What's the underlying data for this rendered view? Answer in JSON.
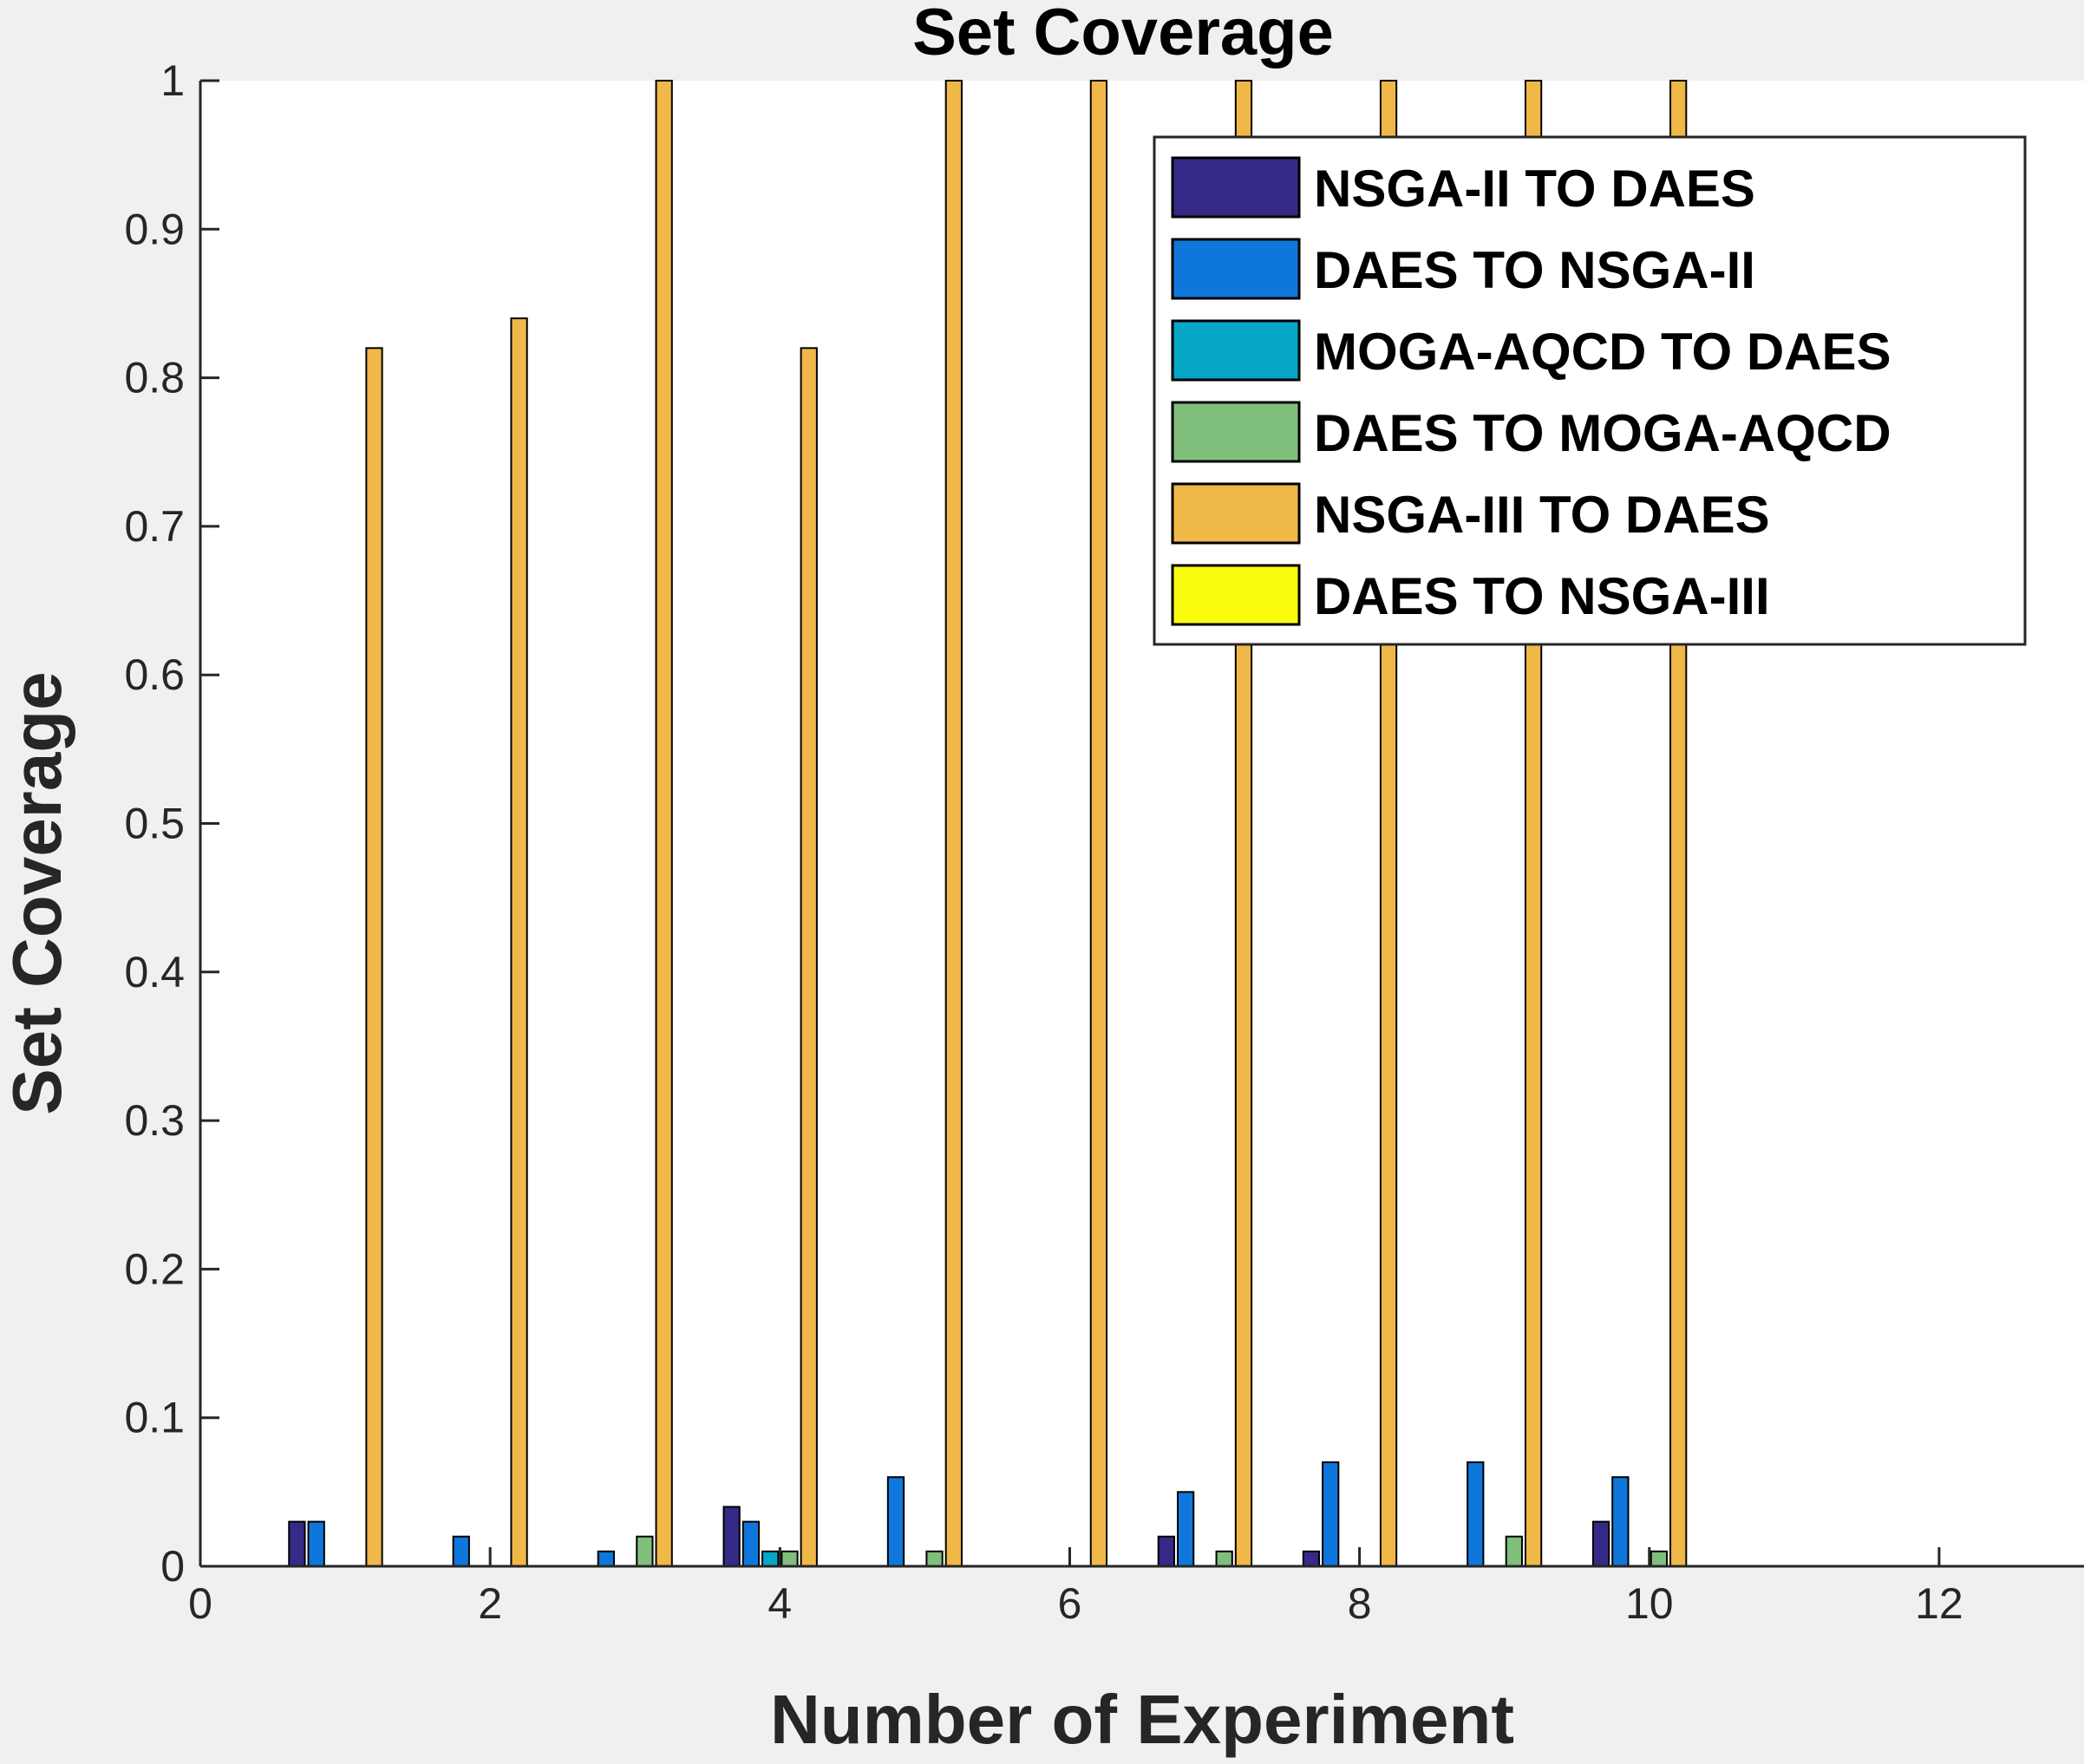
{
  "chart_data": {
    "type": "bar",
    "title": "Set Coverage",
    "xlabel": "Number of Experiment",
    "ylabel": "Set Coverage",
    "xlim": [
      0,
      13
    ],
    "ylim": [
      0,
      1
    ],
    "xticks": [
      "0",
      "2",
      "4",
      "6",
      "8",
      "10",
      "12"
    ],
    "yticks": [
      "0",
      "0.1",
      "0.2",
      "0.3",
      "0.4",
      "0.5",
      "0.6",
      "0.7",
      "0.8",
      "0.9",
      "1"
    ],
    "x": [
      1,
      2,
      3,
      4,
      5,
      6,
      7,
      8,
      9,
      10
    ],
    "grid": false,
    "legend_position": "top-right",
    "series": [
      {
        "name": "NSGA-II TO DAES",
        "color": "#352a87",
        "values": [
          0.03,
          0,
          0,
          0.04,
          0,
          0,
          0.02,
          0.01,
          0,
          0.03
        ]
      },
      {
        "name": "DAES TO NSGA-II",
        "color": "#0f77db",
        "values": [
          0.03,
          0.02,
          0.01,
          0.03,
          0.06,
          0,
          0.05,
          0.07,
          0.07,
          0.06
        ]
      },
      {
        "name": "MOGA-AQCD TO DAES",
        "color": "#06a6c6",
        "values": [
          0,
          0,
          0,
          0.01,
          0,
          0,
          0,
          0,
          0,
          0
        ]
      },
      {
        "name": "DAES TO MOGA-AQCD",
        "color": "#7fbf7b",
        "values": [
          0,
          0,
          0.02,
          0.01,
          0.01,
          0,
          0.01,
          0,
          0.02,
          0.01
        ]
      },
      {
        "name": "NSGA-III TO DAES",
        "color": "#f0b848",
        "values": [
          0.82,
          0.84,
          1.0,
          0.82,
          1.0,
          1.0,
          1.0,
          1.0,
          1.0,
          1.0
        ]
      },
      {
        "name": "DAES TO NSGA-III",
        "color": "#f9fb0e",
        "values": [
          0,
          0,
          0,
          0,
          0,
          0,
          0,
          0,
          0,
          0
        ]
      }
    ]
  }
}
